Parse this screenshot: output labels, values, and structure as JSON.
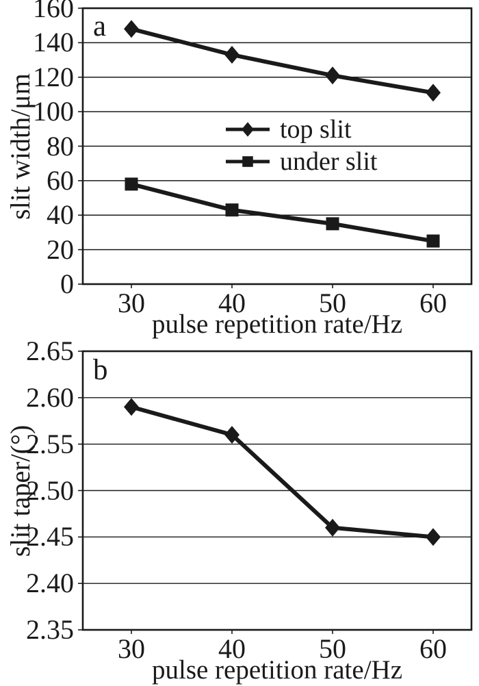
{
  "figure": {
    "background": "#ffffff",
    "ink_color": "#1a1a1a"
  },
  "chart_data": [
    {
      "id": "a",
      "type": "line",
      "panel_label": "a",
      "xlabel": "pulse repetition rate/Hz",
      "ylabel": "slit width/μm",
      "x_tick_labels": [
        "30",
        "40",
        "50",
        "60"
      ],
      "x": [
        30,
        40,
        50,
        60
      ],
      "y_tick_labels": [
        "160",
        "140",
        "120",
        "100",
        "80",
        "60",
        "40",
        "20",
        "0"
      ],
      "ylim": [
        0,
        160
      ],
      "y_tick_step": 20,
      "grid": "horizontal",
      "legend_position": "center",
      "series": [
        {
          "name": "top slit",
          "marker": "diamond",
          "values": [
            148,
            133,
            121,
            111
          ]
        },
        {
          "name": "under slit",
          "marker": "square",
          "values": [
            58,
            43,
            35,
            25
          ]
        }
      ]
    },
    {
      "id": "b",
      "type": "line",
      "panel_label": "b",
      "xlabel": "pulse repetition rate/Hz",
      "ylabel": "slit taper/(°)",
      "x_tick_labels": [
        "30",
        "40",
        "50",
        "60"
      ],
      "x": [
        30,
        40,
        50,
        60
      ],
      "y_tick_labels": [
        "2.65",
        "2.60",
        "2.55",
        "2.50",
        "2.45",
        "2.40",
        "2.35"
      ],
      "ylim": [
        2.35,
        2.65
      ],
      "y_tick_step": 0.05,
      "grid": "horizontal",
      "legend_position": "none",
      "series": [
        {
          "name": "",
          "marker": "diamond",
          "values": [
            2.59,
            2.56,
            2.46,
            2.45
          ]
        }
      ]
    }
  ]
}
